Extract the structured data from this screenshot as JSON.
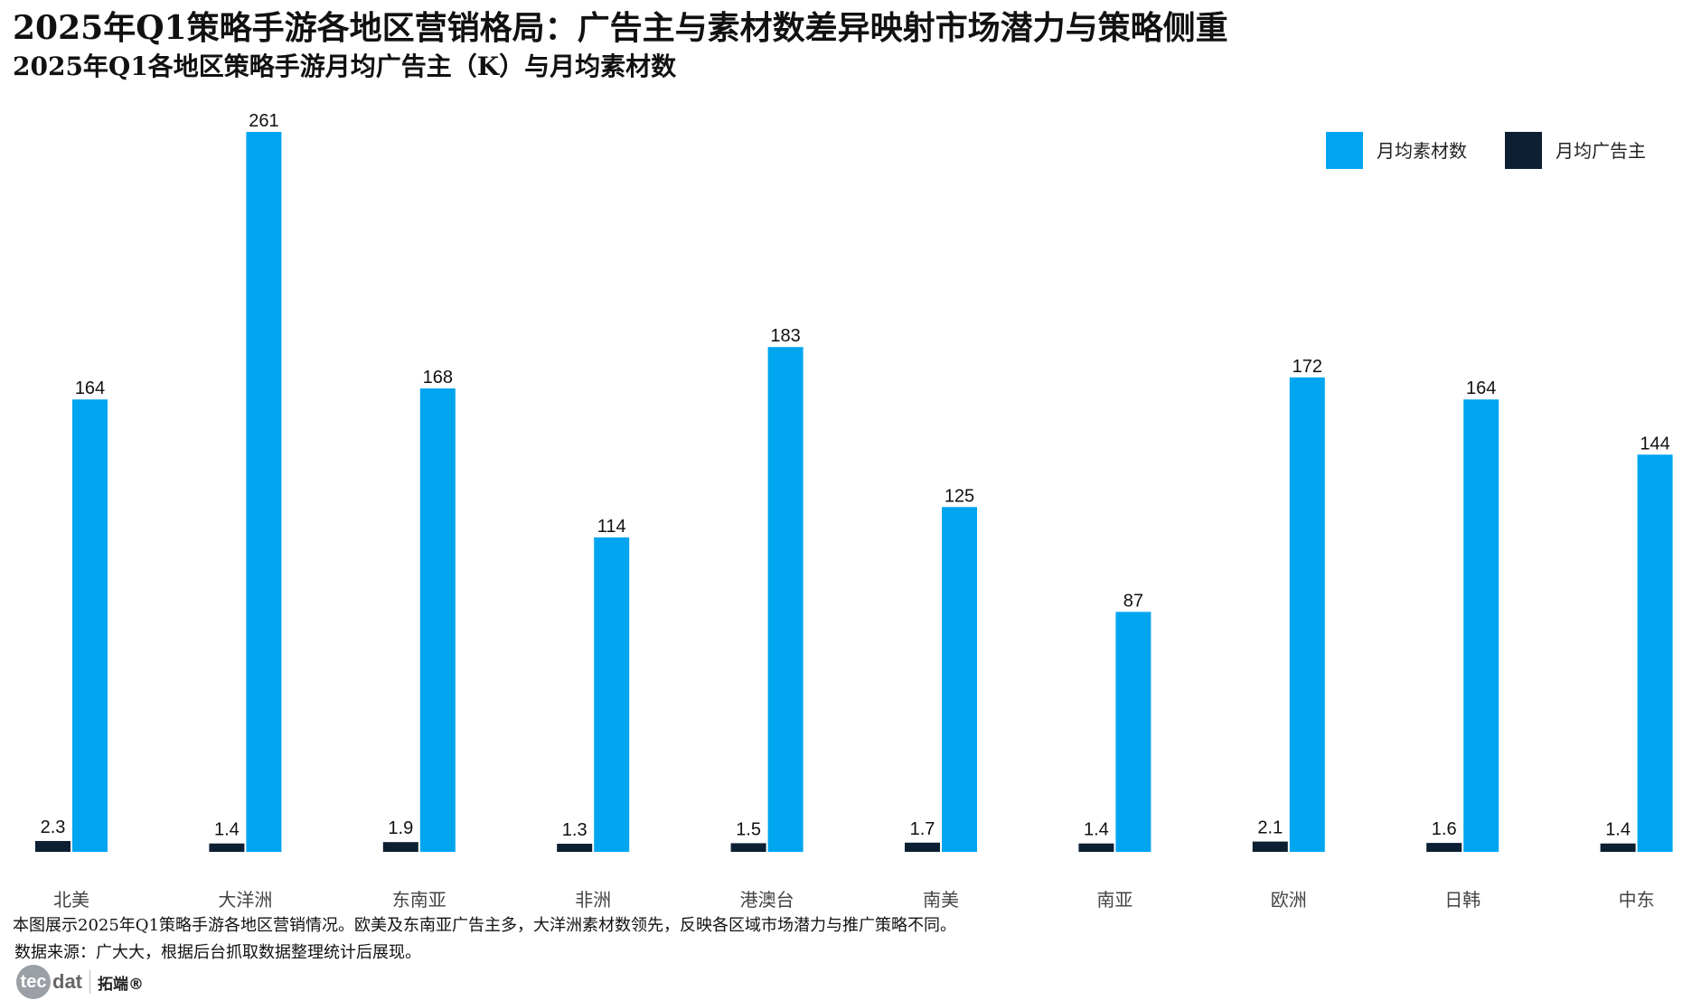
{
  "header": {
    "title": "2025年Q1策略手游各地区营销格局：广告主与素材数差异映射市场潜力与策略侧重",
    "subtitle": "2025年Q1各地区策略手游月均广告主（K）与月均素材数"
  },
  "chart_data": {
    "type": "bar",
    "categories": [
      "北美",
      "大洋洲",
      "东南亚",
      "非洲",
      "港澳台",
      "南美",
      "南亚",
      "欧洲",
      "日韩",
      "中东"
    ],
    "series": [
      {
        "name": "月均广告主",
        "color": "#0c1f33",
        "values": [
          2.3,
          1.4,
          1.9,
          1.3,
          1.5,
          1.7,
          1.4,
          2.1,
          1.6,
          1.4
        ]
      },
      {
        "name": "月均素材数",
        "color": "#00a5f0",
        "values": [
          164,
          261,
          168,
          114,
          183,
          125,
          87,
          172,
          164,
          144
        ]
      }
    ],
    "value_labels": {
      "advertisers": [
        "2.3",
        "1.4",
        "1.9",
        "1.3",
        "1.5",
        "1.7",
        "1.4",
        "2.1",
        "1.6",
        "1.4"
      ],
      "materials": [
        "164",
        "261",
        "168",
        "114",
        "183",
        "125",
        "87",
        "172",
        "164",
        "144"
      ]
    },
    "ylim": [
      0,
      261
    ],
    "grid": false,
    "legend": {
      "position": "top-right",
      "items": [
        {
          "label": "月均素材数",
          "color": "#00a5f0"
        },
        {
          "label": "月均广告主",
          "color": "#0c1f33"
        }
      ]
    }
  },
  "footer": {
    "note": "本图展示2025年Q1策略手游各地区营销情况。欧美及东南亚广告主多，大洋洲素材数领先，反映各区域市场潜力与推广策略不同。",
    "source": "数据来源：广大大，根据后台抓取数据整理统计后展现。",
    "logo_mark": "tec",
    "logo_text": "dat",
    "logo_cn": "拓端®"
  }
}
